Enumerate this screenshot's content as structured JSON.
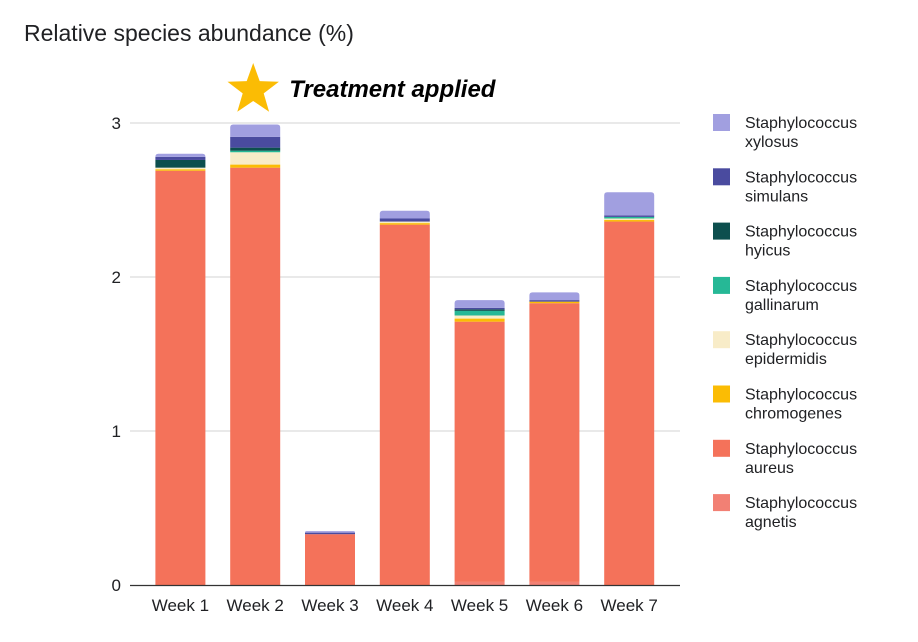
{
  "chart_data": {
    "type": "bar",
    "stacked": true,
    "title": "Relative species abundance (%)",
    "xlabel": "",
    "ylabel": "",
    "ylim": [
      0,
      3
    ],
    "yticks": [
      0,
      1,
      2,
      3
    ],
    "grid": true,
    "legend_position": "right",
    "categories": [
      "Week 1",
      "Week 2",
      "Week 3",
      "Week 4",
      "Week 5",
      "Week 6",
      "Week 7"
    ],
    "series": [
      {
        "name": "Staphylococcus agnetis",
        "color": "#f28074",
        "values": [
          0.0,
          0.0,
          0.0,
          0.0,
          0.02,
          0.02,
          0.0
        ]
      },
      {
        "name": "Staphylococcus aureus",
        "color": "#f4725a",
        "values": [
          2.69,
          2.71,
          0.33,
          2.34,
          1.69,
          1.81,
          2.36
        ]
      },
      {
        "name": "Staphylococcus chromogenes",
        "color": "#fbbc04",
        "values": [
          0.01,
          0.02,
          0.0,
          0.01,
          0.02,
          0.01,
          0.01
        ]
      },
      {
        "name": "Staphylococcus epidermidis",
        "color": "#f8ecc8",
        "values": [
          0.01,
          0.08,
          0.0,
          0.01,
          0.02,
          0.0,
          0.01
        ]
      },
      {
        "name": "Staphylococcus gallinarum",
        "color": "#26b896",
        "values": [
          0.0,
          0.01,
          0.0,
          0.0,
          0.03,
          0.0,
          0.01
        ]
      },
      {
        "name": "Staphylococcus hyicus",
        "color": "#0d4f4e",
        "values": [
          0.05,
          0.02,
          0.0,
          0.0,
          0.01,
          0.0,
          0.0
        ]
      },
      {
        "name": "Staphylococcus simulans",
        "color": "#4a4b9f",
        "values": [
          0.02,
          0.07,
          0.01,
          0.02,
          0.01,
          0.01,
          0.01
        ]
      },
      {
        "name": "Staphylococcus xylosus",
        "color": "#a19fe0",
        "values": [
          0.02,
          0.08,
          0.01,
          0.05,
          0.05,
          0.05,
          0.15
        ]
      }
    ],
    "annotations": [
      {
        "text": "Treatment applied",
        "target_category": "Week 2",
        "star_color": "#fbbc04"
      }
    ]
  }
}
